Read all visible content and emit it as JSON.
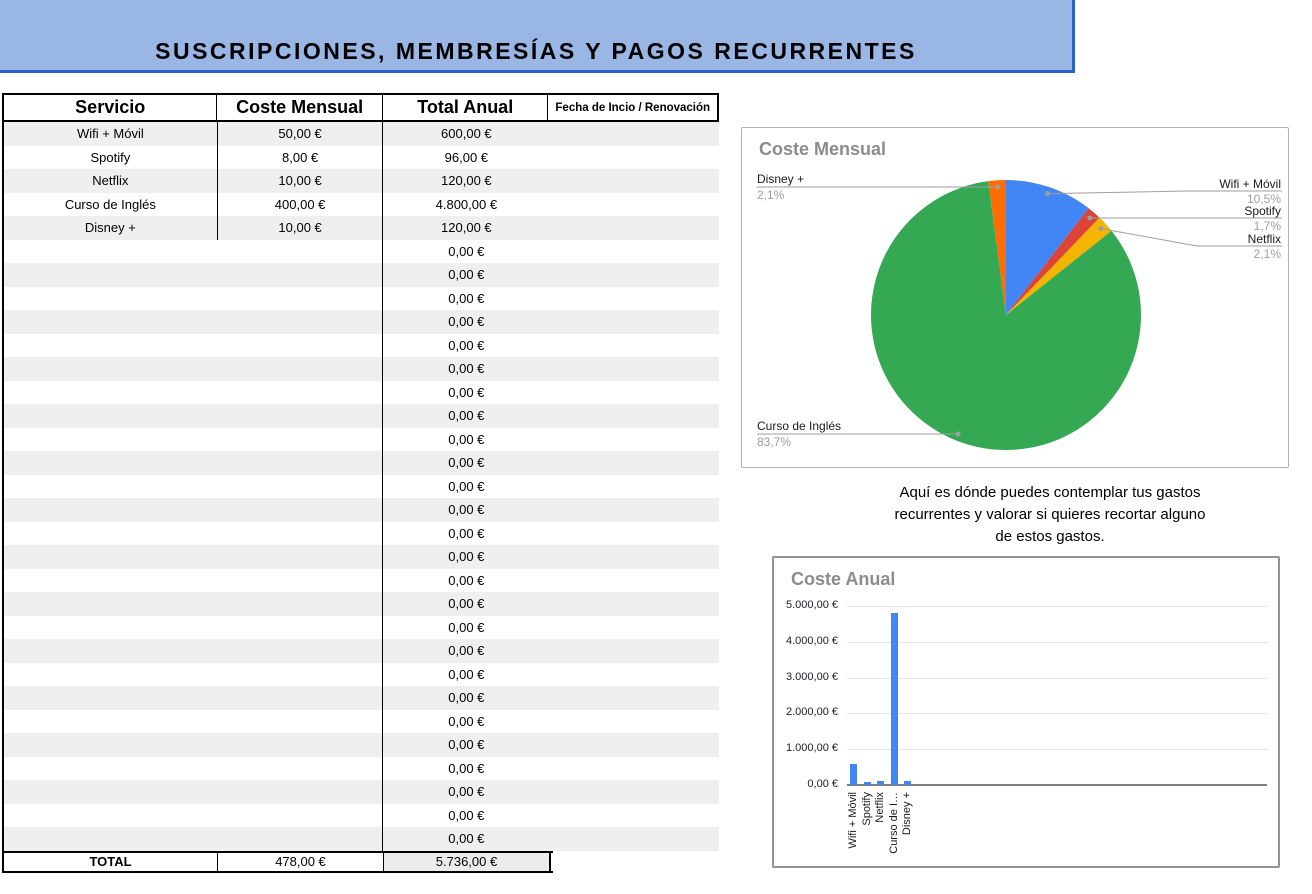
{
  "banner": {
    "title": "SUSCRIPCIONES, MEMBRESÍAS Y PAGOS RECURRENTES"
  },
  "table": {
    "headers": [
      "Servicio",
      "Coste Mensual",
      "Total Anual",
      "Fecha de Incio / Renovación"
    ],
    "rows": [
      {
        "servicio": "Wifi + Móvil",
        "coste": "50,00 €",
        "total": "600,00 €",
        "fecha": ""
      },
      {
        "servicio": "Spotify",
        "coste": "8,00 €",
        "total": "96,00 €",
        "fecha": ""
      },
      {
        "servicio": "Netflix",
        "coste": "10,00 €",
        "total": "120,00 €",
        "fecha": ""
      },
      {
        "servicio": "Curso de Inglés",
        "coste": "400,00 €",
        "total": "4.800,00 €",
        "fecha": ""
      },
      {
        "servicio": "Disney +",
        "coste": "10,00 €",
        "total": "120,00 €",
        "fecha": ""
      }
    ],
    "empty_row_count": 26,
    "empty_total_value": "0,00 €",
    "total_row": {
      "label": "TOTAL",
      "coste": "478,00 €",
      "total": "5.736,00 €"
    }
  },
  "note": {
    "lines": [
      "Aquí es dónde puedes contemplar tus gastos",
      "recurrentes y valorar si quieres recortar alguno",
      "de estos gastos."
    ]
  },
  "colors": {
    "banner_bg": "#9AB6E4",
    "banner_border": "#2B5FCE",
    "row_stripe": "#EFEFEF",
    "bar_blue": "#4285F4",
    "chart_title_gray": "#8C8C8C",
    "pct_label_gray": "#9E9E9E"
  },
  "chart_data": [
    {
      "type": "pie",
      "title": "Coste Mensual",
      "labels": [
        "Wifi + Móvil",
        "Spotify",
        "Netflix",
        "Curso de Inglés",
        "Disney +"
      ],
      "values_eur": [
        50,
        8,
        10,
        400,
        10
      ],
      "values_pct": [
        10.5,
        1.7,
        2.1,
        83.7,
        2.1
      ],
      "percent_labels": [
        "10,5%",
        "1,7%",
        "2,1%",
        "83,7%",
        "2,1%"
      ],
      "colors": [
        "#4285F4",
        "#DB4437",
        "#F4B400",
        "#34A853",
        "#FF6D01"
      ],
      "legend_position": "outside-callouts"
    },
    {
      "type": "bar",
      "title": "Coste Anual",
      "categories": [
        "Wifi + Móvil",
        "Spotify",
        "Netflix",
        "Curso de I…",
        "Disney +"
      ],
      "values": [
        600,
        96,
        120,
        4800,
        120
      ],
      "bar_color": "#4285F4",
      "y_ticks": [
        "0,00 €",
        "1.000,00 €",
        "2.000,00 €",
        "3.000,00 €",
        "4.000,00 €",
        "5.000,00 €"
      ],
      "y_tick_values": [
        0,
        1000,
        2000,
        3000,
        4000,
        5000
      ],
      "ylim": [
        0,
        5000
      ],
      "total_category_slots": 31,
      "grid": true,
      "legend_position": "none"
    }
  ]
}
